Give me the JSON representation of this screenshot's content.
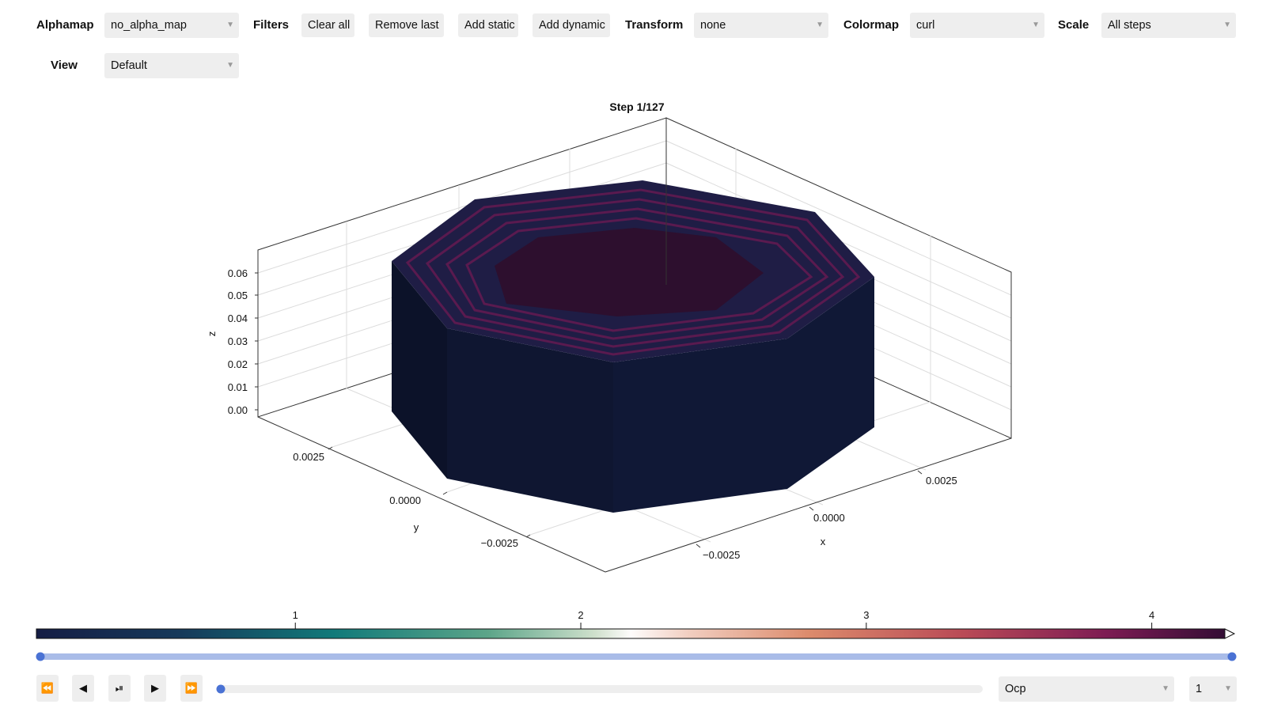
{
  "toolbar": {
    "alphamap_label": "Alphamap",
    "alphamap_value": "no_alpha_map",
    "filters_label": "Filters",
    "clear_all": "Clear all",
    "remove_last": "Remove last",
    "add_static": "Add static",
    "add_dynamic": "Add dynamic",
    "transform_label": "Transform",
    "transform_value": "none",
    "colormap_label": "Colormap",
    "colormap_value": "curl",
    "scale_label": "Scale",
    "scale_value": "All steps",
    "view_label": "View",
    "view_value": "Default"
  },
  "plot": {
    "title": "Step 1/127",
    "z_label": "z",
    "y_label": "y",
    "x_label": "x",
    "z_ticks": [
      "0.06",
      "0.05",
      "0.04",
      "0.03",
      "0.02",
      "0.01",
      "0.00"
    ],
    "y_ticks": [
      "0.0025",
      "0.0000",
      "−0.0025"
    ],
    "x_ticks": [
      "0.0025",
      "0.0000",
      "−0.0025"
    ],
    "colors": {
      "side_left": "#0c1229",
      "side_front": "#0f1631",
      "side_right": "#101836",
      "top_outer": "#1f1d45",
      "ring_stripe": "#5a1a4f",
      "top_inner": "#2d0f2e"
    }
  },
  "colorbar": {
    "ticks": [
      "1",
      "2",
      "3",
      "4"
    ],
    "tick_values": [
      1,
      2,
      3,
      4
    ],
    "range": [
      0.093,
      4.256
    ],
    "colormap": "curl"
  },
  "step_slider": {
    "value_fraction": 0.0
  },
  "playback": {
    "rewind_icon": "rewind-icon",
    "step_back_icon": "step-back-icon",
    "play_pause_icon": "play-pause-icon",
    "play_icon": "play-icon",
    "fast_forward_icon": "fast-forward-icon",
    "progress_fraction": 0.0,
    "variable_value": "Ocp",
    "index_value": "1"
  }
}
